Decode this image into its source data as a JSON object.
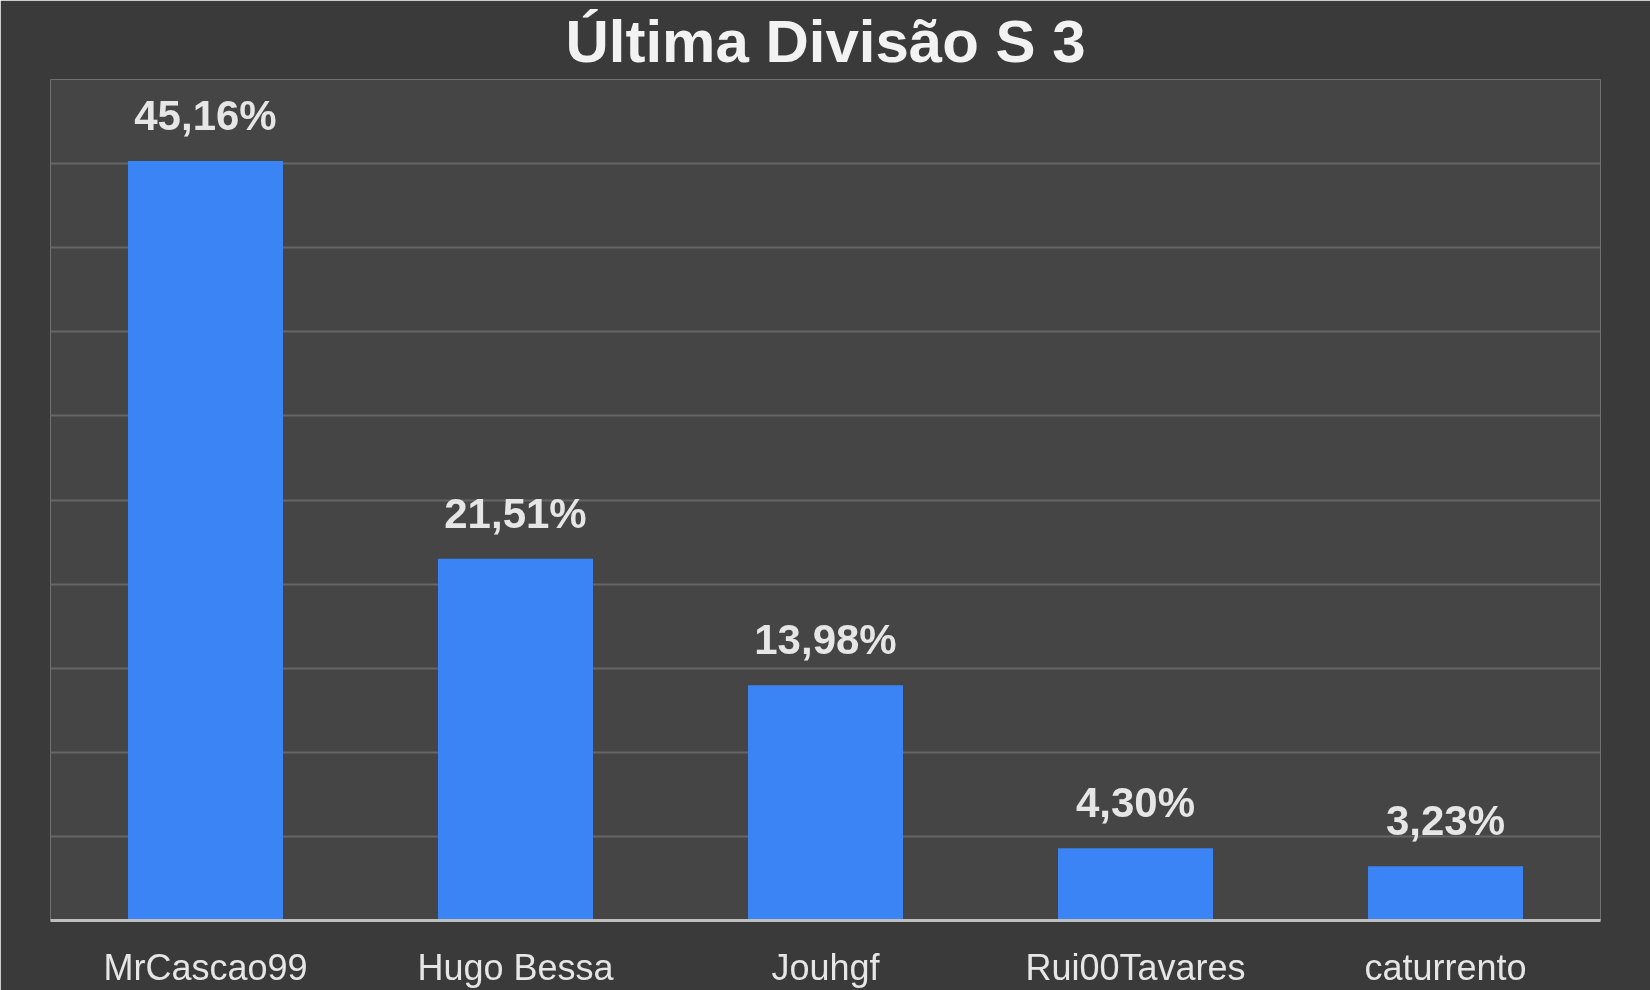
{
  "chart_data": {
    "type": "bar",
    "title": "Última Divisão S 3",
    "categories": [
      "MrCascao99",
      "Hugo Bessa",
      "Jouhgf",
      "Rui00Tavares",
      "caturrento"
    ],
    "values": [
      45.16,
      21.51,
      13.98,
      4.3,
      3.23
    ],
    "value_labels": [
      "45,16%",
      "21,51%",
      "13,98%",
      "4,30%",
      "3,23%"
    ],
    "color": "#3a84f5",
    "ylim": [
      0,
      50
    ],
    "yticks": [
      {
        "value": 0,
        "label": null
      },
      {
        "value": 5,
        "label": null
      },
      {
        "value": 10,
        "label": null
      },
      {
        "value": 15,
        "label": null
      },
      {
        "value": 20,
        "label": null
      },
      {
        "value": 25,
        "label": null
      },
      {
        "value": 30,
        "label": null
      },
      {
        "value": 35,
        "label": null
      },
      {
        "value": 40,
        "label": null
      },
      {
        "value": 45,
        "label": null
      },
      {
        "value": 50,
        "label": null
      }
    ],
    "grid": "y"
  }
}
